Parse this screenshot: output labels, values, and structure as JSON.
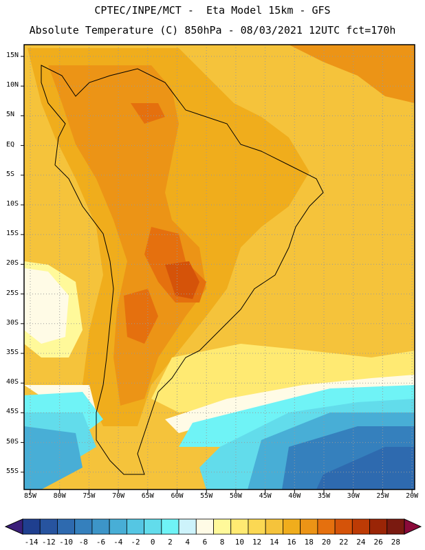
{
  "header": {
    "line1": "CPTEC/INPE/MCT -  Eta Model 15km - GFS",
    "line2": "Absolute Temperature (C) 850hPa - 08/03/2021 12UTC fct=170h"
  },
  "axes": {
    "lat_labels": [
      "15N",
      "10N",
      "5N",
      "EQ",
      "5S",
      "10S",
      "15S",
      "20S",
      "25S",
      "30S",
      "35S",
      "40S",
      "45S",
      "50S",
      "55S"
    ],
    "lon_labels": [
      "85W",
      "80W",
      "75W",
      "70W",
      "65W",
      "60W",
      "55W",
      "50W",
      "45W",
      "40W",
      "35W",
      "30W",
      "25W",
      "20W"
    ]
  },
  "colorbar": {
    "labels": [
      "-14",
      "-12",
      "-10",
      "-8",
      "-6",
      "-4",
      "-2",
      "0",
      "2",
      "4",
      "6",
      "8",
      "10",
      "12",
      "14",
      "16",
      "18",
      "20",
      "22",
      "24",
      "26",
      "28"
    ],
    "colors": [
      "#1f3f8f",
      "#27549f",
      "#2e6aaf",
      "#3580bd",
      "#3d95c8",
      "#48aed6",
      "#55c6e3",
      "#62dceb",
      "#6ff3f6",
      "#cdf3fb",
      "#fffbe6",
      "#fff99a",
      "#ffea72",
      "#fbd853",
      "#f5c33b",
      "#f0ad1c",
      "#ec9416",
      "#e5700e",
      "#d55309",
      "#bd3b05",
      "#9a2506",
      "#7a1a10"
    ],
    "end_colors": [
      "#3b1f7a",
      "#8a0a3a"
    ]
  }
}
